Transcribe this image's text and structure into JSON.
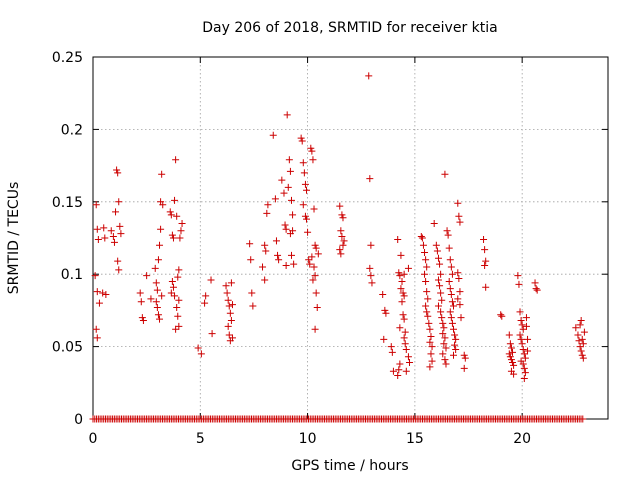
{
  "chart_data": {
    "type": "scatter",
    "title": "Day 206 of 2018, SRMTID for receiver ktia",
    "xlabel": "GPS time / hours",
    "ylabel": "SRMTID / TECUs",
    "xlim": [
      0,
      24
    ],
    "ylim": [
      0,
      0.25
    ],
    "xticks": [
      0,
      5,
      10,
      15,
      20
    ],
    "yticks": [
      0,
      0.05,
      0.1,
      0.15,
      0.2,
      0.25
    ],
    "xtick_labels": [
      "0",
      "5",
      "10",
      "15",
      "20"
    ],
    "ytick_labels": [
      "0",
      "0.05",
      "0.1",
      "0.15",
      "0.2",
      "0.25"
    ],
    "grid": true,
    "marker": "+",
    "color": "#cc0000",
    "baseline": {
      "y": 0,
      "x_start": 0.0,
      "x_end": 22.9,
      "step": 0.083
    },
    "points": [
      [
        0.15,
        0.148
      ],
      [
        0.2,
        0.131
      ],
      [
        0.25,
        0.124
      ],
      [
        0.1,
        0.099
      ],
      [
        0.2,
        0.088
      ],
      [
        0.15,
        0.062
      ],
      [
        0.2,
        0.056
      ],
      [
        0.3,
        0.08
      ],
      [
        0.5,
        0.132
      ],
      [
        0.55,
        0.125
      ],
      [
        0.6,
        0.086
      ],
      [
        0.45,
        0.087
      ],
      [
        0.85,
        0.13
      ],
      [
        0.95,
        0.126
      ],
      [
        1.0,
        0.122
      ],
      [
        1.05,
        0.143
      ],
      [
        1.1,
        0.172
      ],
      [
        1.15,
        0.17
      ],
      [
        1.2,
        0.15
      ],
      [
        1.15,
        0.109
      ],
      [
        1.2,
        0.103
      ],
      [
        1.25,
        0.133
      ],
      [
        1.3,
        0.128
      ],
      [
        2.2,
        0.087
      ],
      [
        2.25,
        0.081
      ],
      [
        2.3,
        0.07
      ],
      [
        2.35,
        0.068
      ],
      [
        2.5,
        0.099
      ],
      [
        2.7,
        0.083
      ],
      [
        2.9,
        0.104
      ],
      [
        2.95,
        0.094
      ],
      [
        3.0,
        0.089
      ],
      [
        3.05,
        0.11
      ],
      [
        3.1,
        0.12
      ],
      [
        3.15,
        0.15
      ],
      [
        3.2,
        0.169
      ],
      [
        3.25,
        0.148
      ],
      [
        3.0,
        0.077
      ],
      [
        3.05,
        0.072
      ],
      [
        3.1,
        0.069
      ],
      [
        2.95,
        0.081
      ],
      [
        3.2,
        0.085
      ],
      [
        3.15,
        0.131
      ],
      [
        3.6,
        0.143
      ],
      [
        3.65,
        0.141
      ],
      [
        3.7,
        0.127
      ],
      [
        3.75,
        0.125
      ],
      [
        3.8,
        0.151
      ],
      [
        3.85,
        0.179
      ],
      [
        3.9,
        0.14
      ],
      [
        3.7,
        0.095
      ],
      [
        3.75,
        0.091
      ],
      [
        3.65,
        0.087
      ],
      [
        3.8,
        0.085
      ],
      [
        3.9,
        0.077
      ],
      [
        3.95,
        0.071
      ],
      [
        4.0,
        0.064
      ],
      [
        3.85,
        0.062
      ],
      [
        3.95,
        0.098
      ],
      [
        4.0,
        0.103
      ],
      [
        4.05,
        0.125
      ],
      [
        4.1,
        0.13
      ],
      [
        4.15,
        0.135
      ],
      [
        4.0,
        0.082
      ],
      [
        4.9,
        0.049
      ],
      [
        5.05,
        0.045
      ],
      [
        5.2,
        0.08
      ],
      [
        5.25,
        0.085
      ],
      [
        5.5,
        0.096
      ],
      [
        5.55,
        0.059
      ],
      [
        6.2,
        0.092
      ],
      [
        6.25,
        0.087
      ],
      [
        6.3,
        0.082
      ],
      [
        6.35,
        0.078
      ],
      [
        6.4,
        0.073
      ],
      [
        6.45,
        0.068
      ],
      [
        6.3,
        0.064
      ],
      [
        6.35,
        0.058
      ],
      [
        6.4,
        0.054
      ],
      [
        6.5,
        0.056
      ],
      [
        6.45,
        0.094
      ],
      [
        6.5,
        0.079
      ],
      [
        7.3,
        0.121
      ],
      [
        7.35,
        0.11
      ],
      [
        7.4,
        0.087
      ],
      [
        7.45,
        0.078
      ],
      [
        7.9,
        0.105
      ],
      [
        8.0,
        0.12
      ],
      [
        8.05,
        0.116
      ],
      [
        8.1,
        0.142
      ],
      [
        8.15,
        0.148
      ],
      [
        8.0,
        0.096
      ],
      [
        8.4,
        0.196
      ],
      [
        8.5,
        0.152
      ],
      [
        8.55,
        0.123
      ],
      [
        8.6,
        0.113
      ],
      [
        8.65,
        0.11
      ],
      [
        8.8,
        0.165
      ],
      [
        8.9,
        0.156
      ],
      [
        8.95,
        0.134
      ],
      [
        9.0,
        0.131
      ],
      [
        9.05,
        0.21
      ],
      [
        9.1,
        0.16
      ],
      [
        9.15,
        0.179
      ],
      [
        9.2,
        0.171
      ],
      [
        9.25,
        0.151
      ],
      [
        9.3,
        0.13
      ],
      [
        9.2,
        0.128
      ],
      [
        9.25,
        0.113
      ],
      [
        9.0,
        0.106
      ],
      [
        9.3,
        0.141
      ],
      [
        9.35,
        0.107
      ],
      [
        9.7,
        0.194
      ],
      [
        9.75,
        0.192
      ],
      [
        9.8,
        0.177
      ],
      [
        9.85,
        0.17
      ],
      [
        9.9,
        0.162
      ],
      [
        9.95,
        0.158
      ],
      [
        9.8,
        0.148
      ],
      [
        9.9,
        0.14
      ],
      [
        9.95,
        0.138
      ],
      [
        10.0,
        0.129
      ],
      [
        10.05,
        0.11
      ],
      [
        10.1,
        0.107
      ],
      [
        10.15,
        0.187
      ],
      [
        10.2,
        0.185
      ],
      [
        10.25,
        0.179
      ],
      [
        10.3,
        0.145
      ],
      [
        10.35,
        0.12
      ],
      [
        10.4,
        0.118
      ],
      [
        10.3,
        0.105
      ],
      [
        10.35,
        0.099
      ],
      [
        10.25,
        0.096
      ],
      [
        10.4,
        0.087
      ],
      [
        10.45,
        0.077
      ],
      [
        10.35,
        0.062
      ],
      [
        10.2,
        0.112
      ],
      [
        10.5,
        0.114
      ],
      [
        11.5,
        0.147
      ],
      [
        11.6,
        0.141
      ],
      [
        11.65,
        0.139
      ],
      [
        11.55,
        0.13
      ],
      [
        11.6,
        0.126
      ],
      [
        11.65,
        0.12
      ],
      [
        11.5,
        0.117
      ],
      [
        11.55,
        0.114
      ],
      [
        11.7,
        0.123
      ],
      [
        12.85,
        0.237
      ],
      [
        12.9,
        0.166
      ],
      [
        12.95,
        0.12
      ],
      [
        12.9,
        0.104
      ],
      [
        12.95,
        0.099
      ],
      [
        13.0,
        0.094
      ],
      [
        13.5,
        0.086
      ],
      [
        13.6,
        0.075
      ],
      [
        13.65,
        0.073
      ],
      [
        13.55,
        0.055
      ],
      [
        13.9,
        0.05
      ],
      [
        13.95,
        0.046
      ],
      [
        14.0,
        0.033
      ],
      [
        14.2,
        0.03
      ],
      [
        14.25,
        0.034
      ],
      [
        14.3,
        0.038
      ],
      [
        14.2,
        0.124
      ],
      [
        14.35,
        0.113
      ],
      [
        14.25,
        0.101
      ],
      [
        14.3,
        0.099
      ],
      [
        14.4,
        0.095
      ],
      [
        14.35,
        0.09
      ],
      [
        14.45,
        0.087
      ],
      [
        14.5,
        0.085
      ],
      [
        14.4,
        0.081
      ],
      [
        14.45,
        0.072
      ],
      [
        14.5,
        0.069
      ],
      [
        14.55,
        0.06
      ],
      [
        14.5,
        0.056
      ],
      [
        14.55,
        0.052
      ],
      [
        14.6,
        0.048
      ],
      [
        14.7,
        0.043
      ],
      [
        14.75,
        0.039
      ],
      [
        14.6,
        0.033
      ],
      [
        14.7,
        0.104
      ],
      [
        14.3,
        0.063
      ],
      [
        14.5,
        0.1
      ],
      [
        15.3,
        0.126
      ],
      [
        15.35,
        0.125
      ],
      [
        15.4,
        0.12
      ],
      [
        15.45,
        0.115
      ],
      [
        15.5,
        0.11
      ],
      [
        15.55,
        0.105
      ],
      [
        15.45,
        0.1
      ],
      [
        15.5,
        0.095
      ],
      [
        15.55,
        0.088
      ],
      [
        15.6,
        0.083
      ],
      [
        15.5,
        0.078
      ],
      [
        15.55,
        0.074
      ],
      [
        15.6,
        0.071
      ],
      [
        15.65,
        0.066
      ],
      [
        15.7,
        0.062
      ],
      [
        15.75,
        0.057
      ],
      [
        15.7,
        0.053
      ],
      [
        15.8,
        0.05
      ],
      [
        15.75,
        0.045
      ],
      [
        15.8,
        0.04
      ],
      [
        15.7,
        0.036
      ],
      [
        15.9,
        0.135
      ],
      [
        16.0,
        0.12
      ],
      [
        16.05,
        0.116
      ],
      [
        16.1,
        0.111
      ],
      [
        16.15,
        0.107
      ],
      [
        16.2,
        0.1
      ],
      [
        16.1,
        0.096
      ],
      [
        16.15,
        0.092
      ],
      [
        16.2,
        0.087
      ],
      [
        16.25,
        0.082
      ],
      [
        16.1,
        0.078
      ],
      [
        16.2,
        0.074
      ],
      [
        16.25,
        0.07
      ],
      [
        16.3,
        0.066
      ],
      [
        16.35,
        0.063
      ],
      [
        16.3,
        0.059
      ],
      [
        16.4,
        0.056
      ],
      [
        16.35,
        0.052
      ],
      [
        16.45,
        0.049
      ],
      [
        16.3,
        0.045
      ],
      [
        16.4,
        0.041
      ],
      [
        16.45,
        0.038
      ],
      [
        16.4,
        0.169
      ],
      [
        16.5,
        0.13
      ],
      [
        16.55,
        0.127
      ],
      [
        16.6,
        0.118
      ],
      [
        16.65,
        0.11
      ],
      [
        16.7,
        0.105
      ],
      [
        16.75,
        0.1
      ],
      [
        16.6,
        0.095
      ],
      [
        16.65,
        0.09
      ],
      [
        16.7,
        0.086
      ],
      [
        16.75,
        0.081
      ],
      [
        16.8,
        0.078
      ],
      [
        16.65,
        0.074
      ],
      [
        16.7,
        0.07
      ],
      [
        16.75,
        0.066
      ],
      [
        16.8,
        0.062
      ],
      [
        16.85,
        0.058
      ],
      [
        16.9,
        0.055
      ],
      [
        16.85,
        0.051
      ],
      [
        16.9,
        0.048
      ],
      [
        16.8,
        0.044
      ],
      [
        17.0,
        0.149
      ],
      [
        17.05,
        0.14
      ],
      [
        17.1,
        0.136
      ],
      [
        17.0,
        0.101
      ],
      [
        17.05,
        0.097
      ],
      [
        17.1,
        0.088
      ],
      [
        17.0,
        0.083
      ],
      [
        17.1,
        0.079
      ],
      [
        17.15,
        0.07
      ],
      [
        17.3,
        0.044
      ],
      [
        17.35,
        0.042
      ],
      [
        17.3,
        0.035
      ],
      [
        18.2,
        0.124
      ],
      [
        18.25,
        0.117
      ],
      [
        18.3,
        0.109
      ],
      [
        18.25,
        0.106
      ],
      [
        18.3,
        0.091
      ],
      [
        19.0,
        0.072
      ],
      [
        19.05,
        0.071
      ],
      [
        19.4,
        0.058
      ],
      [
        19.45,
        0.052
      ],
      [
        19.5,
        0.049
      ],
      [
        19.55,
        0.046
      ],
      [
        19.4,
        0.045
      ],
      [
        19.45,
        0.043
      ],
      [
        19.5,
        0.041
      ],
      [
        19.55,
        0.039
      ],
      [
        19.6,
        0.037
      ],
      [
        19.5,
        0.033
      ],
      [
        19.6,
        0.031
      ],
      [
        19.8,
        0.099
      ],
      [
        19.85,
        0.093
      ],
      [
        19.9,
        0.074
      ],
      [
        19.95,
        0.068
      ],
      [
        20.0,
        0.065
      ],
      [
        20.05,
        0.062
      ],
      [
        19.9,
        0.058
      ],
      [
        19.95,
        0.055
      ],
      [
        20.0,
        0.052
      ],
      [
        20.05,
        0.048
      ],
      [
        20.1,
        0.045
      ],
      [
        20.15,
        0.042
      ],
      [
        19.95,
        0.04
      ],
      [
        20.05,
        0.038
      ],
      [
        20.1,
        0.035
      ],
      [
        20.15,
        0.032
      ],
      [
        20.1,
        0.028
      ],
      [
        20.2,
        0.064
      ],
      [
        20.2,
        0.07
      ],
      [
        20.25,
        0.055
      ],
      [
        20.25,
        0.047
      ],
      [
        20.6,
        0.094
      ],
      [
        20.65,
        0.09
      ],
      [
        20.7,
        0.089
      ],
      [
        22.5,
        0.063
      ],
      [
        22.6,
        0.058
      ],
      [
        22.65,
        0.054
      ],
      [
        22.7,
        0.05
      ],
      [
        22.75,
        0.047
      ],
      [
        22.8,
        0.044
      ],
      [
        22.7,
        0.065
      ],
      [
        22.75,
        0.068
      ],
      [
        22.8,
        0.055
      ],
      [
        22.85,
        0.052
      ],
      [
        22.9,
        0.06
      ],
      [
        22.85,
        0.042
      ]
    ]
  }
}
